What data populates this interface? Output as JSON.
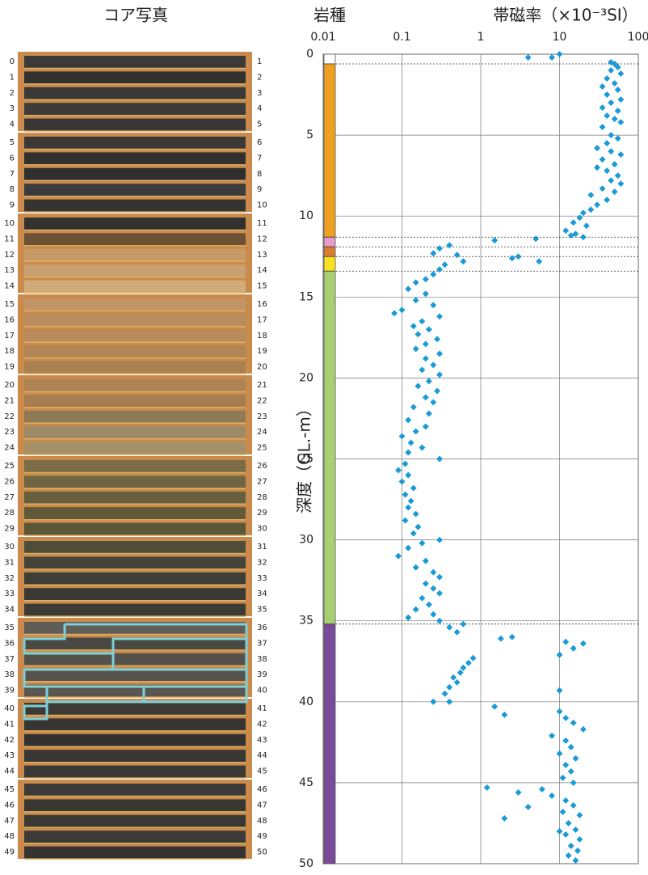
{
  "core_photo": {
    "title": "コア写真",
    "left_labels": [
      0,
      1,
      2,
      3,
      4,
      5,
      6,
      7,
      8,
      9,
      10,
      11,
      12,
      13,
      14,
      15,
      16,
      17,
      18,
      19,
      20,
      21,
      22,
      23,
      24,
      25,
      26,
      27,
      28,
      29,
      30,
      31,
      32,
      33,
      34,
      35,
      36,
      37,
      38,
      39,
      40,
      41,
      42,
      43,
      44,
      45,
      46,
      47,
      48,
      49
    ],
    "right_labels": [
      1,
      2,
      3,
      4,
      5,
      6,
      7,
      8,
      9,
      10,
      11,
      12,
      13,
      14,
      15,
      16,
      17,
      18,
      19,
      20,
      21,
      22,
      23,
      24,
      25,
      26,
      27,
      28,
      29,
      30,
      31,
      32,
      33,
      34,
      35,
      36,
      37,
      38,
      39,
      40,
      41,
      42,
      43,
      44,
      45,
      46,
      47,
      48,
      49,
      50
    ],
    "row_colors": [
      "#3b3a38",
      "#333231",
      "#3a3938",
      "#3d3b3a",
      "#383736",
      "#3a3938",
      "#323130",
      "#2f2e30",
      "#3b3a3c",
      "#353433",
      "#343230",
      "#6b5234",
      "#c79b68",
      "#c9a070",
      "#d2ab7a",
      "#c39467",
      "#b98c5e",
      "#b88a5c",
      "#b28656",
      "#a98050",
      "#ae8455",
      "#a67d50",
      "#8f7a58",
      "#9d8a66",
      "#a59068",
      "#7a6d45",
      "#6f6542",
      "#675e3e",
      "#605a3b",
      "#5a5638",
      "#4e4d3a",
      "#45443a",
      "#3e3d36",
      "#3a3934",
      "#3c3b36",
      "#605d58",
      "#4a4843",
      "#55524d",
      "#56534f",
      "#5a5753",
      "#3c3a37",
      "#363532",
      "#343230",
      "#393734",
      "#3b3936",
      "#3c3a37",
      "#383633",
      "#3a3835",
      "#3d3b38",
      "#363432"
    ]
  },
  "chart_data": {
    "type": "scatter",
    "lith_title": "岩種",
    "title": "帯磁率（×10⁻³SI）",
    "y_label": "深度（GL.-m）",
    "xscale": "log",
    "xlim": [
      0.01,
      100
    ],
    "xticks": [
      0.01,
      0.1,
      1,
      10,
      100
    ],
    "ylim": [
      50,
      0
    ],
    "yticks": [
      0,
      5,
      10,
      15,
      20,
      25,
      30,
      35,
      40,
      45,
      50
    ],
    "grid": true,
    "layers": [
      {
        "top": 0,
        "bottom": 0.6,
        "color": "#ffffff"
      },
      {
        "top": 0.6,
        "bottom": 11.3,
        "color": "#f0a020"
      },
      {
        "top": 11.3,
        "bottom": 11.9,
        "color": "#e89ac8"
      },
      {
        "top": 11.9,
        "bottom": 12.5,
        "color": "#d88030"
      },
      {
        "top": 12.5,
        "bottom": 13.4,
        "color": "#f8e020"
      },
      {
        "top": 13.4,
        "bottom": 35.2,
        "color": "#a8d070"
      },
      {
        "top": 35.2,
        "bottom": 50,
        "color": "#7a4a9a"
      }
    ],
    "series": [
      {
        "color": "#1a9ad6",
        "x": [
          4,
          8,
          10,
          45,
          50,
          55,
          45,
          60,
          40,
          50,
          35,
          55,
          40,
          60,
          45,
          35,
          55,
          40,
          50,
          60,
          35,
          45,
          55,
          40,
          30,
          45,
          60,
          35,
          50,
          30,
          40,
          55,
          45,
          60,
          35,
          50,
          25,
          40,
          30,
          25,
          20,
          18,
          15,
          22,
          12,
          16,
          20,
          14,
          1.5,
          5,
          0.4,
          0.3,
          0.25,
          0.5,
          2.5,
          0.6,
          3,
          5.5,
          0.35,
          0.3,
          0.25,
          0.2,
          0.15,
          0.12,
          0.2,
          0.15,
          0.25,
          0.1,
          0.08,
          0.3,
          0.18,
          0.14,
          0.22,
          0.16,
          0.28,
          0.2,
          0.15,
          0.3,
          0.2,
          0.25,
          0.18,
          0.3,
          0.22,
          0.16,
          0.28,
          0.2,
          0.25,
          0.14,
          0.22,
          0.12,
          0.2,
          0.15,
          0.1,
          0.13,
          0.18,
          0.12,
          0.3,
          0.11,
          0.09,
          0.12,
          0.1,
          0.14,
          0.11,
          0.13,
          0.12,
          0.15,
          0.11,
          0.16,
          0.14,
          0.3,
          0.18,
          0.12,
          0.09,
          0.2,
          0.15,
          0.25,
          0.3,
          0.2,
          0.25,
          0.3,
          0.18,
          0.22,
          0.15,
          0.25,
          0.3,
          0.12,
          0.4,
          0.6,
          0.5,
          1.8,
          2.5,
          12,
          20,
          15,
          10,
          0.8,
          0.7,
          0.6,
          0.55,
          0.45,
          0.5,
          0.4,
          0.35,
          0.25,
          0.4,
          10,
          1.5,
          2,
          10,
          12,
          15,
          20,
          8,
          12,
          14,
          10,
          16,
          12,
          14,
          11,
          15,
          1.2,
          3,
          6,
          8,
          12,
          15,
          11,
          18,
          2,
          13,
          16,
          12,
          18,
          14,
          17,
          13,
          16,
          10,
          4
        ],
        "values": [
          0.2,
          0.2,
          0,
          0.5,
          0.6,
          0.8,
          1,
          1.2,
          1.5,
          1.8,
          2,
          2.2,
          2.5,
          2.8,
          3,
          3.3,
          3.5,
          3.8,
          4,
          4.2,
          4.5,
          5,
          5.2,
          5.5,
          5.8,
          6,
          6.2,
          6.5,
          6.8,
          7,
          7.2,
          7.5,
          7.8,
          8,
          8.3,
          8.5,
          8.7,
          9,
          9.3,
          9.6,
          9.8,
          10.1,
          10.4,
          10.6,
          10.9,
          11.1,
          11.3,
          11.2,
          11.5,
          11.4,
          11.8,
          12,
          12.3,
          12.4,
          12.6,
          12.8,
          12.5,
          12.8,
          13,
          13.3,
          13.6,
          13.9,
          14.1,
          14.5,
          14.8,
          15.2,
          15.5,
          15.8,
          16,
          16.2,
          16.5,
          16.8,
          17,
          17.3,
          17.6,
          17.9,
          18.2,
          18.5,
          18.8,
          19.2,
          19.5,
          19.8,
          20.2,
          20.5,
          20.8,
          21.2,
          21.5,
          21.8,
          22.2,
          22.6,
          23,
          23.3,
          23.6,
          24,
          24.3,
          24.6,
          25,
          25.3,
          25.7,
          26,
          26.4,
          26.8,
          27.2,
          27.6,
          28,
          28.4,
          28.8,
          29.2,
          29.6,
          30,
          30.2,
          30.5,
          31,
          31.3,
          31.7,
          32,
          32.3,
          32.7,
          33,
          33.3,
          33.6,
          34,
          34.3,
          34.6,
          35,
          34.8,
          35.4,
          35.2,
          35.7,
          36.1,
          36,
          36.3,
          36.4,
          36.7,
          37.1,
          37.3,
          37.6,
          37.9,
          38.2,
          38.5,
          38.8,
          39.1,
          39.5,
          40,
          40,
          39.3,
          40.3,
          40.8,
          40.6,
          41,
          41.3,
          41.7,
          42.1,
          42.4,
          42.8,
          43.2,
          43.5,
          43.9,
          44.3,
          44.7,
          45,
          45.3,
          45.6,
          45.4,
          45.8,
          46.1,
          46.4,
          46.8,
          47,
          47.2,
          47.5,
          47.9,
          48.2,
          48.5,
          48.9,
          49.2,
          49.5,
          49.8,
          48,
          46.5
        ]
      }
    ]
  }
}
